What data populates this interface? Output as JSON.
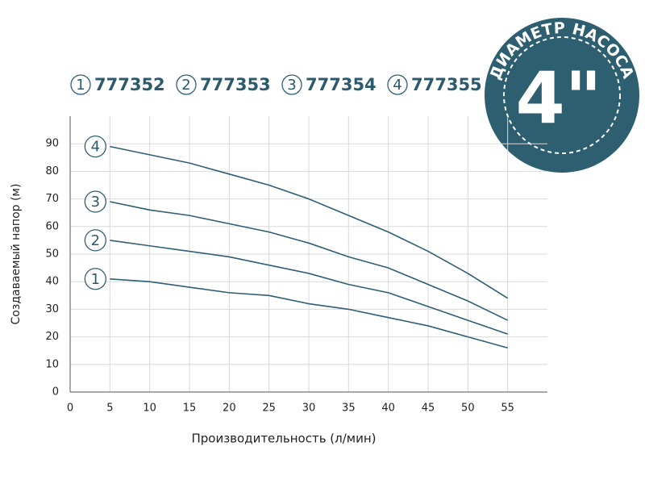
{
  "chart_data": {
    "type": "line",
    "x_label": "Производительность (л/мин)",
    "y_label": "Создаваемый напор (м)",
    "badge_title": "ДИАМЕТР НАСОСА",
    "badge_label": "4\"",
    "x": [
      5,
      10,
      15,
      20,
      25,
      30,
      35,
      40,
      45,
      50,
      55
    ],
    "series": [
      {
        "name": "777352",
        "label": "1",
        "color": "#2e5f73",
        "values": [
          41,
          40,
          38,
          36,
          35,
          32,
          30,
          27,
          24,
          20,
          16
        ]
      },
      {
        "name": "777353",
        "label": "2",
        "color": "#2e5f73",
        "values": [
          55,
          53,
          51,
          49,
          46,
          43,
          39,
          36,
          31,
          26,
          21
        ]
      },
      {
        "name": "777354",
        "label": "3",
        "color": "#2e5f73",
        "values": [
          69,
          66,
          64,
          61,
          58,
          54,
          49,
          45,
          39,
          33,
          26
        ]
      },
      {
        "name": "777355",
        "label": "4",
        "color": "#2e5f73",
        "values": [
          89,
          86,
          83,
          79,
          75,
          70,
          64,
          58,
          51,
          43,
          34
        ]
      }
    ],
    "xlim": [
      0,
      60
    ],
    "xticks": [
      0,
      5,
      10,
      15,
      20,
      25,
      30,
      35,
      40,
      45,
      50,
      55
    ],
    "ylim": [
      0,
      100
    ],
    "yticks": [
      0,
      10,
      20,
      30,
      40,
      50,
      60,
      70,
      80,
      90
    ],
    "grid": true
  }
}
